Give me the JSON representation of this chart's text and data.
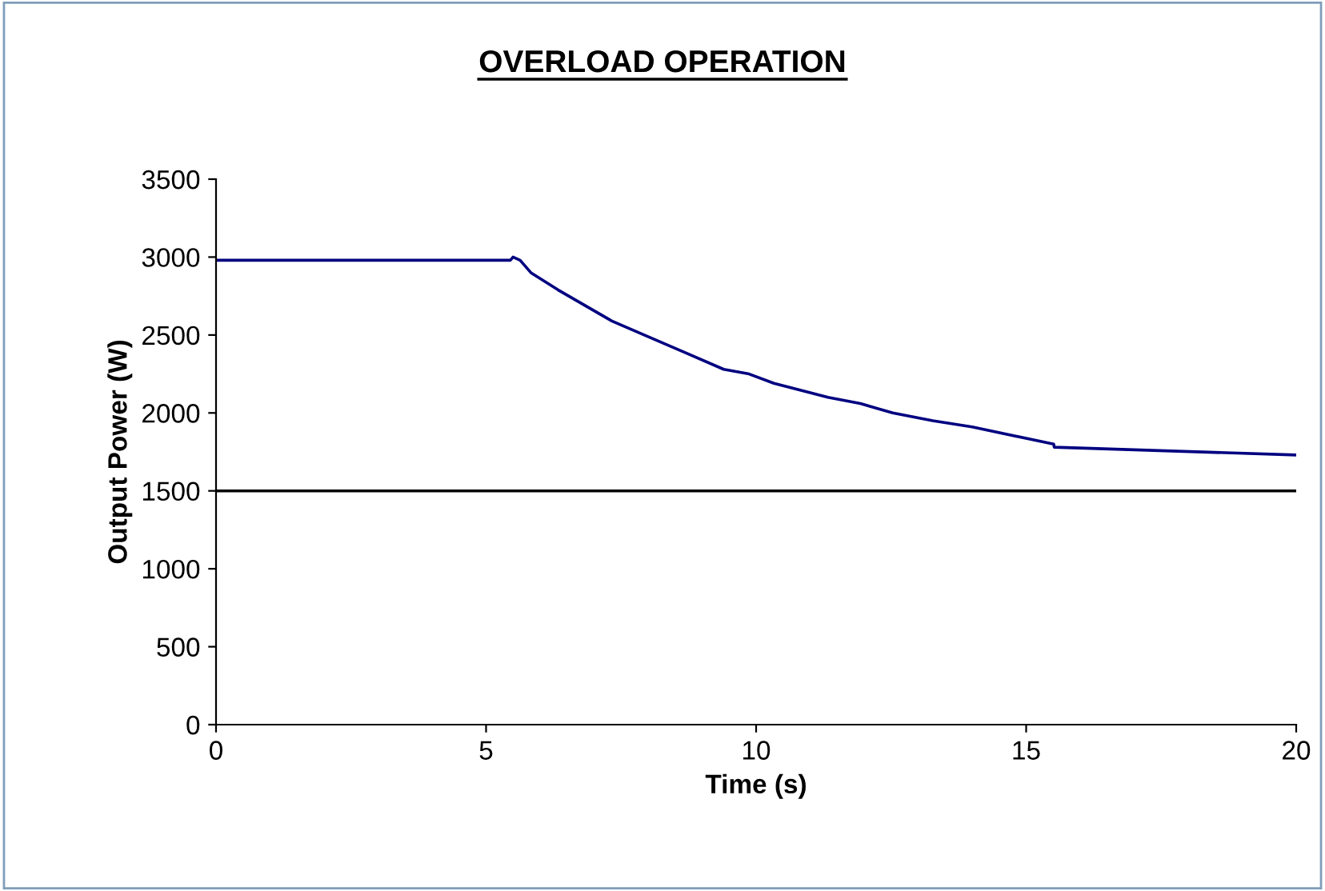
{
  "chart_data": {
    "type": "line",
    "title": "OVERLOAD OPERATION",
    "xlabel": "Time (s)",
    "ylabel": "Output Power (W)",
    "series": [
      {
        "color": "#000080",
        "x": [
          0,
          5.45,
          5.5,
          5.63,
          5.83,
          6.33,
          7.33,
          7.93,
          8.67,
          9.4,
          9.87,
          10.33,
          11.33,
          11.93,
          12.53,
          13.27,
          14.0,
          15.51,
          15.52,
          20
        ],
        "values": [
          2980,
          2980,
          3000,
          2980,
          2900,
          2790,
          2590,
          2500,
          2390,
          2280,
          2250,
          2190,
          2100,
          2060,
          2000,
          1950,
          1910,
          1800,
          1780,
          1730
        ]
      }
    ],
    "ref_lines": [
      {
        "axis": "y",
        "value": 1500,
        "color": "#000000"
      }
    ],
    "xlim": [
      0,
      20
    ],
    "xticks": [
      0,
      5,
      10,
      15,
      20
    ],
    "ylim": [
      0,
      3500
    ],
    "yticks": [
      0,
      500,
      1000,
      1500,
      2000,
      2500,
      3000,
      3500
    ],
    "grid": false,
    "legend": false,
    "marker": "none",
    "line_style": "solid"
  }
}
